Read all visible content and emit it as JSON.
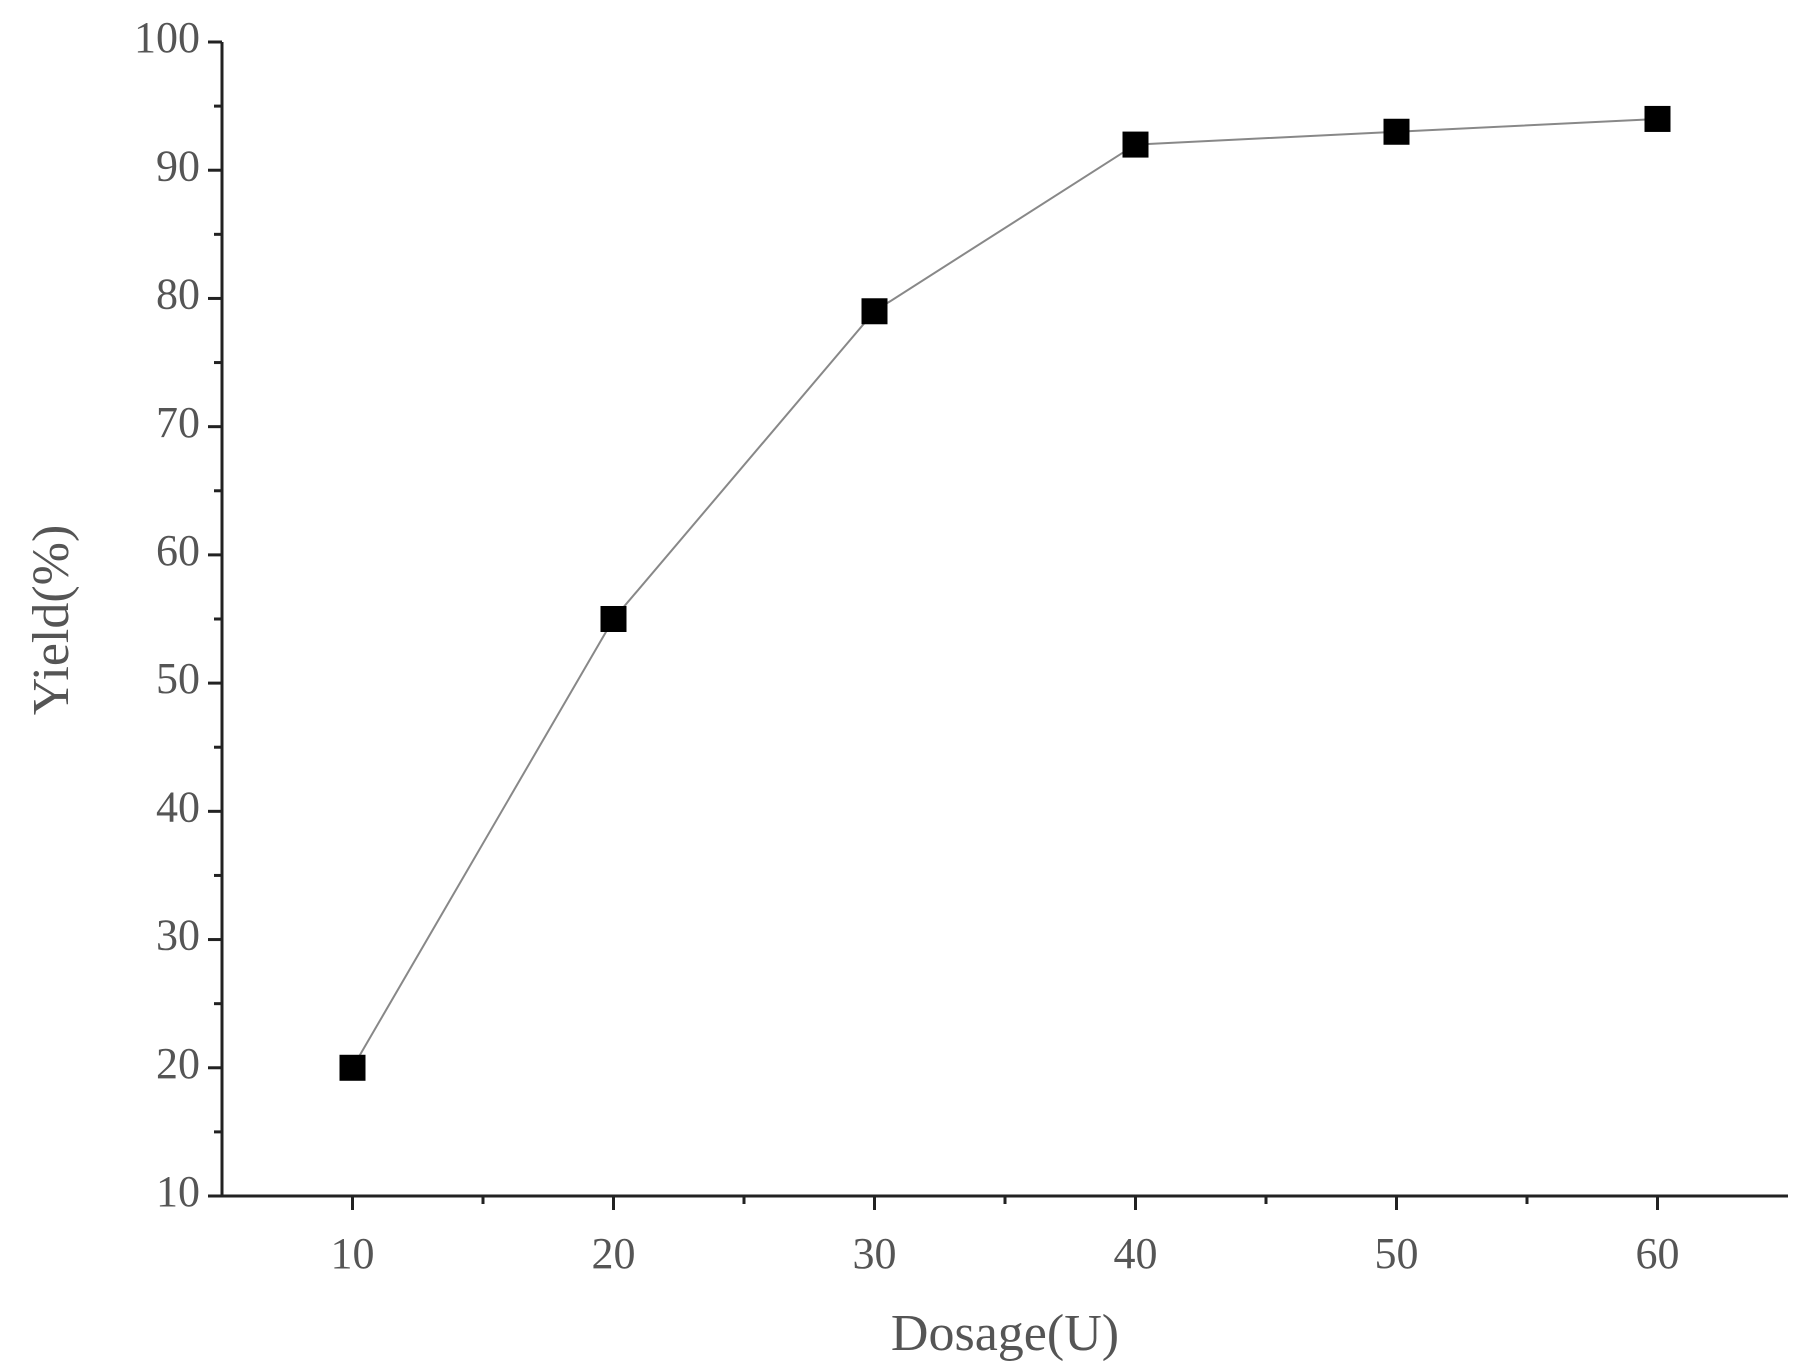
{
  "chart_data": {
    "type": "line",
    "x_label": "Dosage(U)",
    "y_label": "Yield(%)",
    "x": [
      10,
      20,
      30,
      40,
      50,
      60
    ],
    "series": [
      {
        "name": "Yield",
        "color": "#888888",
        "marker_color": "#000000",
        "values": [
          20,
          55,
          79,
          92,
          93,
          94
        ]
      }
    ],
    "xlim": [
      5,
      65
    ],
    "xticks": [
      10,
      20,
      30,
      40,
      50,
      60
    ],
    "ylim": [
      10,
      100
    ],
    "yticks": [
      10,
      20,
      30,
      40,
      50,
      60,
      70,
      80,
      90,
      100
    ],
    "grid": false
  }
}
